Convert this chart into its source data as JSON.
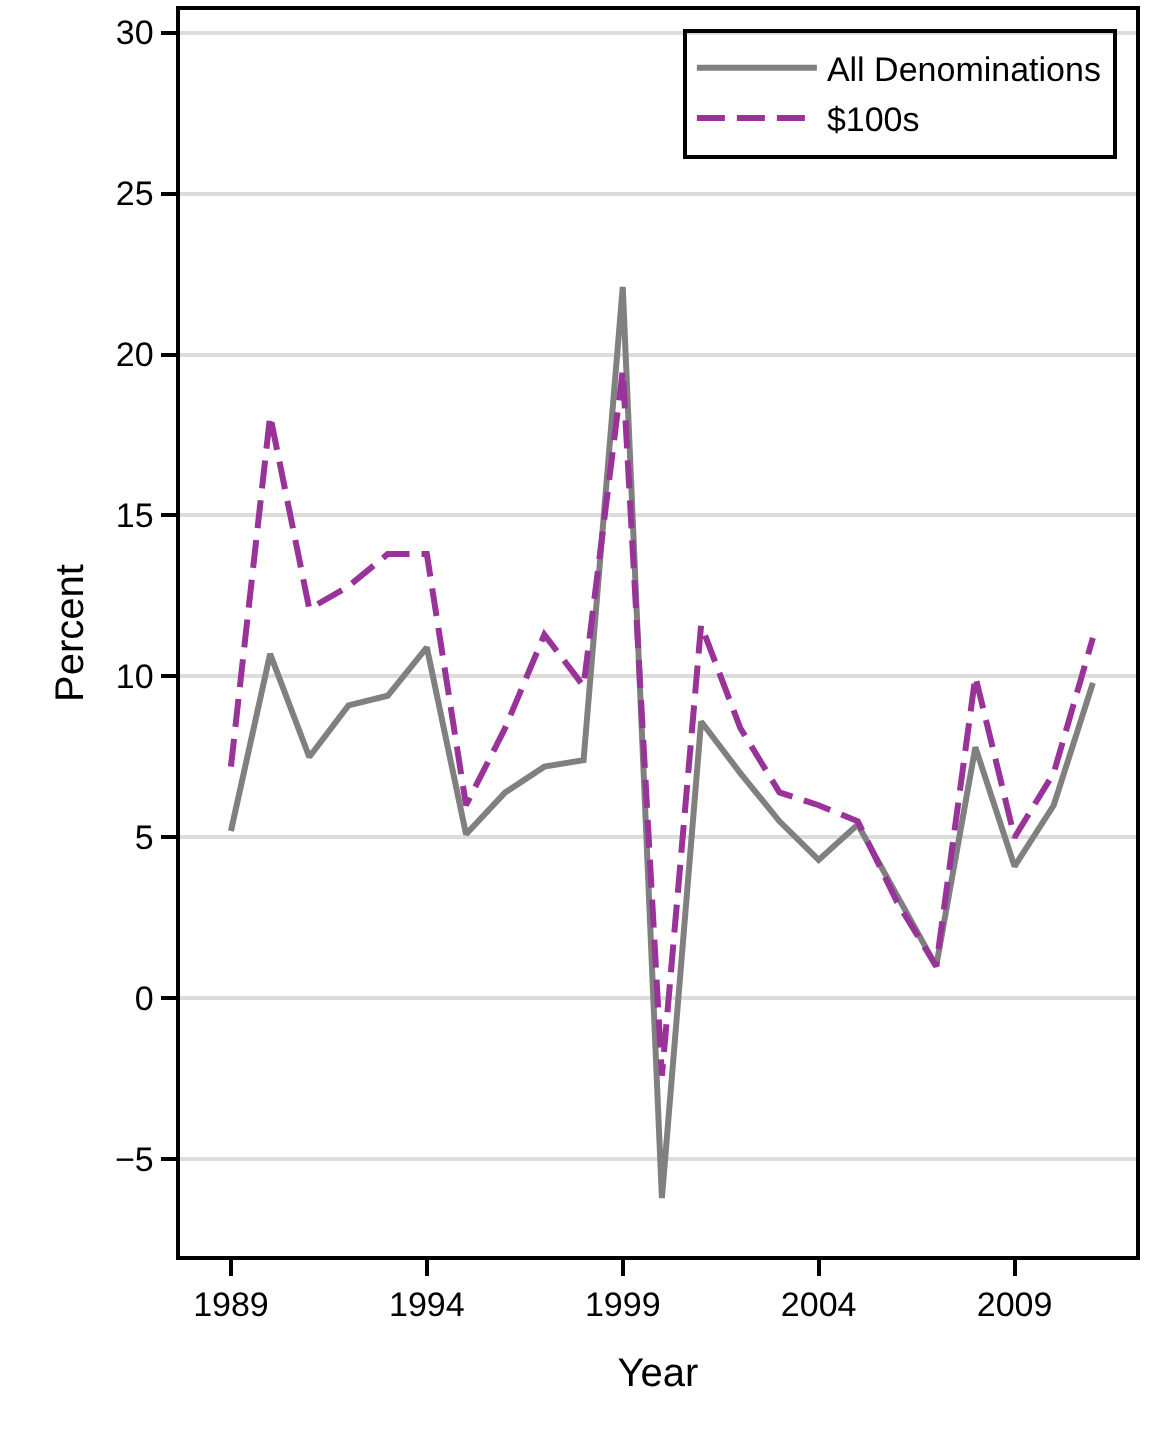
{
  "chart_data": {
    "type": "line",
    "xlabel": "Year",
    "ylabel": "Percent",
    "x": [
      1989,
      1990,
      1991,
      1992,
      1993,
      1994,
      1995,
      1996,
      1997,
      1998,
      1999,
      2000,
      2001,
      2002,
      2003,
      2004,
      2005,
      2006,
      2007,
      2008,
      2009,
      2010,
      2011
    ],
    "series": [
      {
        "name": "All Denominations",
        "color": "#808080",
        "line_style": "solid",
        "values": [
          5.2,
          10.7,
          7.5,
          9.1,
          9.4,
          10.9,
          5.1,
          6.4,
          7.2,
          7.4,
          22.1,
          -6.2,
          8.6,
          7.0,
          5.5,
          4.3,
          5.4,
          3.2,
          1.0,
          7.8,
          4.1,
          6.0,
          9.8
        ]
      },
      {
        "name": "$100s",
        "color": "#993399",
        "line_style": "dashed",
        "values": [
          7.2,
          18.1,
          12.1,
          12.8,
          13.8,
          13.8,
          6.0,
          8.4,
          11.3,
          9.7,
          19.5,
          -2.4,
          11.6,
          8.4,
          6.4,
          6.0,
          5.5,
          3.0,
          1.0,
          10.0,
          5.0,
          7.0,
          11.2
        ]
      }
    ],
    "xlim": [
      1987.7,
      2012.1
    ],
    "xticks": [
      1989,
      1994,
      1999,
      2004,
      2009
    ],
    "ylim": [
      -8,
      30.7
    ],
    "yticks": [
      {
        "value": -5,
        "label": "−5"
      },
      0,
      5,
      10,
      15,
      20,
      25,
      30
    ],
    "grid": "y",
    "legend": "top right",
    "marker": "none"
  }
}
